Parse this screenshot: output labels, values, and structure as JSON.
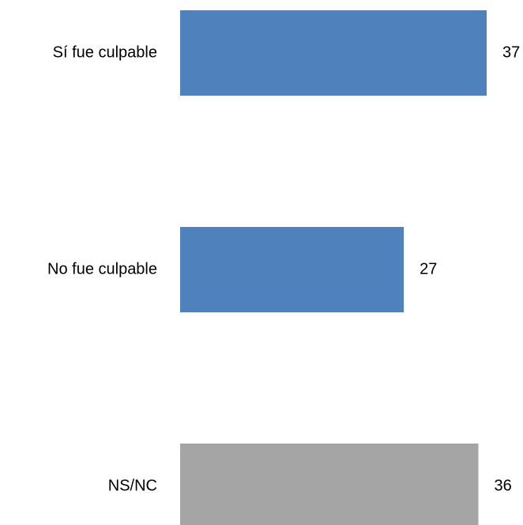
{
  "chart_data": {
    "type": "bar",
    "orientation": "horizontal",
    "categories": [
      "Sí fue culpable",
      "No fue culpable",
      "NS/NC"
    ],
    "values": [
      37,
      27,
      36
    ],
    "colors": [
      "#4F81BD",
      "#4F81BD",
      "#A5A5A5"
    ],
    "title": "",
    "xlabel": "",
    "ylabel": "",
    "xlim": [
      0,
      37
    ],
    "grid": false,
    "legend": "none"
  }
}
